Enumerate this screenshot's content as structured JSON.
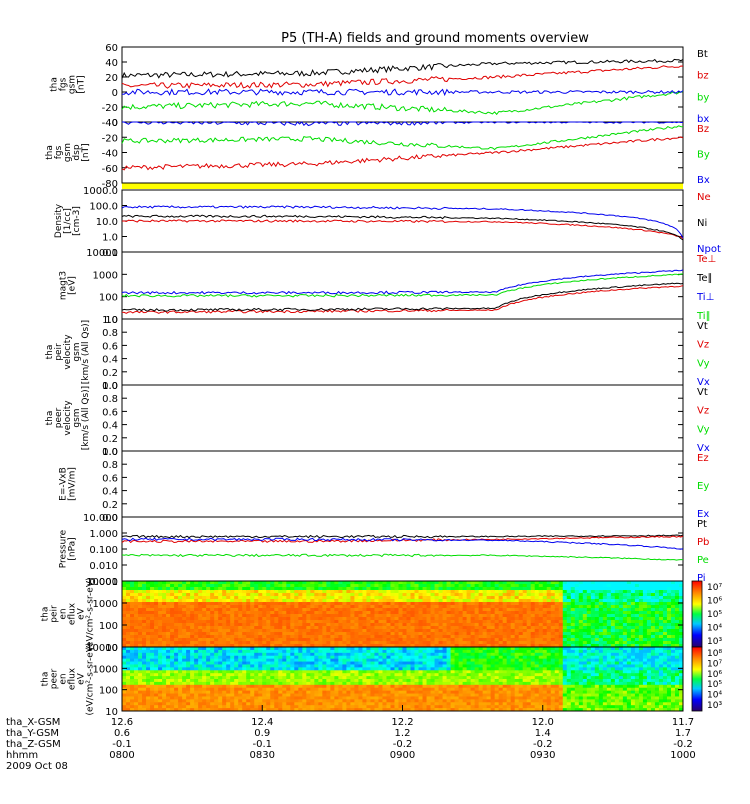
{
  "title": "P5 (TH-A) fields and ground moments overview",
  "colors": {
    "black": "#000000",
    "red": "#e00000",
    "green": "#00dd00",
    "blue": "#0000ee",
    "yellow": "#ffff00"
  },
  "footer": {
    "rows": [
      {
        "label": "tha_X-GSM",
        "values": [
          "12.6",
          "12.4",
          "12.2",
          "12.0",
          "11.7"
        ]
      },
      {
        "label": "tha_Y-GSM",
        "values": [
          "0.6",
          "0.9",
          "1.2",
          "1.4",
          "1.7"
        ]
      },
      {
        "label": "tha_Z-GSM",
        "values": [
          "-0.1",
          "-0.1",
          "-0.2",
          "-0.2",
          "-0.2"
        ]
      },
      {
        "label": "hhmm",
        "values": [
          "0800",
          "0830",
          "0900",
          "0930",
          "1000"
        ]
      }
    ],
    "date": "2009 Oct 08"
  },
  "chart_data": [
    {
      "type": "line",
      "ylabel_lines": [
        "tha",
        "fgs",
        "gsm",
        "[nT]"
      ],
      "yticks": [
        "60",
        "40",
        "20",
        "0",
        "-20",
        "-40"
      ],
      "ylim": [
        -40,
        60
      ],
      "series": [
        {
          "name": "Bt",
          "color": "#000000",
          "approx_values": [
            22,
            25,
            38,
            42
          ]
        },
        {
          "name": "bz",
          "color": "#e00000",
          "approx_values": [
            8,
            10,
            20,
            35
          ]
        },
        {
          "name": "by",
          "color": "#00dd00",
          "approx_values": [
            -20,
            -15,
            -28,
            0
          ]
        },
        {
          "name": "bx",
          "color": "#0000ee",
          "approx_values": [
            0,
            0,
            0,
            0
          ]
        }
      ]
    },
    {
      "type": "line",
      "ylabel_lines": [
        "tha",
        "fgs",
        "gsm",
        "dsp",
        "[nT]"
      ],
      "yticks": [
        "0",
        "-20",
        "-40",
        "-60",
        "-80"
      ],
      "ylim": [
        -80,
        0
      ],
      "series": [
        {
          "name": "Bz",
          "color": "#e00000",
          "approx_values": [
            -60,
            -55,
            -40,
            -20
          ]
        },
        {
          "name": "By",
          "color": "#00dd00",
          "approx_values": [
            -25,
            -22,
            -35,
            -5
          ]
        },
        {
          "name": "Bx",
          "color": "#0000ee",
          "approx_values": [
            0,
            -2,
            0,
            0
          ]
        }
      ]
    },
    {
      "type": "line",
      "scale": "log",
      "ylabel_lines": [
        "Density",
        "[1/cc]",
        "[cm-3]"
      ],
      "yticks": [
        "1000.0",
        "100.0",
        "10.0",
        "1.0",
        "0.1"
      ],
      "ylim": [
        0.1,
        1000
      ],
      "series": [
        {
          "name": "Ne",
          "color": "#e00000",
          "approx_values": [
            10,
            10,
            9,
            0.8
          ]
        },
        {
          "name": "Ni",
          "color": "#000000",
          "approx_values": [
            20,
            20,
            15,
            0.6
          ]
        },
        {
          "name": "Npot",
          "color": "#0000ee",
          "approx_values": [
            80,
            80,
            60,
            0.8
          ]
        }
      ]
    },
    {
      "type": "line",
      "scale": "log",
      "ylabel_lines": [
        "magt3",
        "[eV]"
      ],
      "yticks": [
        "10000",
        "1000",
        "100",
        "10"
      ],
      "ylim": [
        10,
        10000
      ],
      "series": [
        {
          "name": "Te⊥",
          "color": "#e00000",
          "approx_values": [
            20,
            22,
            25,
            300
          ]
        },
        {
          "name": "Te∥",
          "color": "#000000",
          "approx_values": [
            25,
            27,
            30,
            400
          ]
        },
        {
          "name": "Ti⊥",
          "color": "#0000ee",
          "approx_values": [
            150,
            150,
            160,
            1500
          ]
        },
        {
          "name": "Ti∥",
          "color": "#00dd00",
          "approx_values": [
            110,
            110,
            120,
            1000
          ]
        }
      ]
    },
    {
      "type": "line",
      "ylabel_lines": [
        "tha",
        "peir",
        "velocity",
        "gsm",
        "[km/s (All Qs)]"
      ],
      "yticks": [
        "1.0",
        "0.8",
        "0.6",
        "0.4",
        "0.2",
        "0.0"
      ],
      "ylim": [
        0,
        1
      ],
      "series": [
        {
          "name": "Vt",
          "color": "#000000"
        },
        {
          "name": "Vz",
          "color": "#e00000"
        },
        {
          "name": "Vy",
          "color": "#00dd00"
        },
        {
          "name": "Vx",
          "color": "#0000ee"
        }
      ]
    },
    {
      "type": "line",
      "ylabel_lines": [
        "tha",
        "peer",
        "velocity",
        "gsm",
        "[km/s (All Qs)]"
      ],
      "yticks": [
        "1.0",
        "0.8",
        "0.6",
        "0.4",
        "0.2",
        "0.0"
      ],
      "ylim": [
        0,
        1
      ],
      "series": [
        {
          "name": "Vt",
          "color": "#000000"
        },
        {
          "name": "Vz",
          "color": "#e00000"
        },
        {
          "name": "Vy",
          "color": "#00dd00"
        },
        {
          "name": "Vx",
          "color": "#0000ee"
        }
      ]
    },
    {
      "type": "line",
      "ylabel_lines": [
        "E=-VxB",
        "[mV/m]"
      ],
      "yticks": [
        "1.0",
        "0.8",
        "0.6",
        "0.4",
        "0.2",
        "0.0"
      ],
      "ylim": [
        0,
        1
      ],
      "series": [
        {
          "name": "Ez",
          "color": "#e00000"
        },
        {
          "name": "Ey",
          "color": "#00dd00"
        },
        {
          "name": "Ex",
          "color": "#0000ee"
        }
      ]
    },
    {
      "type": "line",
      "scale": "log",
      "ylabel_lines": [
        "Pressure",
        "[nPa]"
      ],
      "yticks": [
        "10.000",
        "1.000",
        "0.100",
        "0.010",
        "0.001"
      ],
      "ylim": [
        0.001,
        10
      ],
      "series": [
        {
          "name": "Pt",
          "color": "#000000",
          "approx_values": [
            0.6,
            0.6,
            0.6,
            0.7
          ]
        },
        {
          "name": "Pb",
          "color": "#e00000",
          "approx_values": [
            0.3,
            0.3,
            0.4,
            0.6
          ]
        },
        {
          "name": "Pe",
          "color": "#00dd00",
          "approx_values": [
            0.04,
            0.04,
            0.04,
            0.02
          ]
        },
        {
          "name": "Pi",
          "color": "#0000ee",
          "approx_values": [
            0.4,
            0.4,
            0.35,
            0.1
          ]
        }
      ]
    },
    {
      "type": "heatmap",
      "ylabel_lines": [
        "tha",
        "peir",
        "en",
        "eflux",
        "eV",
        "(eV/cm²-s-sr-eV)"
      ],
      "yticks": [
        "10000",
        "1000",
        "100",
        "10"
      ],
      "colorbar_ticks": [
        "10⁷",
        "10⁶",
        "10⁵",
        "10⁴",
        "10³"
      ]
    },
    {
      "type": "heatmap",
      "ylabel_lines": [
        "tha",
        "peer",
        "en",
        "eflux",
        "eV",
        "(eV/cm²-s-sr-eV)"
      ],
      "yticks": [
        "10000",
        "1000",
        "100",
        "10"
      ],
      "colorbar_ticks": [
        "10⁸",
        "10⁷",
        "10⁶",
        "10⁵",
        "10⁴",
        "10³"
      ]
    }
  ]
}
